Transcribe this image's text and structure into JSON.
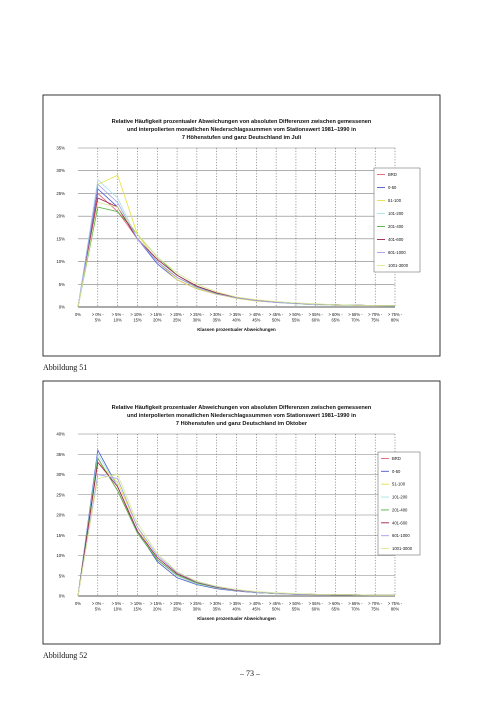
{
  "chart_data": [
    {
      "type": "line",
      "title": [
        "Relative Häufigkeit prozentualer Abweichungen von absoluten Differenzen zwischen gemessenen",
        "und interpolierten monatlichen Niederschlagssummen vom Stationswert 1981–1990 in",
        "7 Höhenstufen und ganz Deutschland im Juli"
      ],
      "x_label": "Klassen prozentualer Abweichungen",
      "categories": [
        "0%",
        "> 0% - 5%",
        "> 5% - 10%",
        "> 10% - 15%",
        "> 15% - 20%",
        "> 20% - 25%",
        "> 25% - 30%",
        "> 30% - 35%",
        "> 35% - 40%",
        "> 40% - 45%",
        "> 45% - 50%",
        "> 50% - 55%",
        "> 55% - 60%",
        "> 60% - 65%",
        "> 65% - 70%",
        "> 70% - 75%",
        "> 75% - 80%"
      ],
      "series": [
        {
          "name": "BRD",
          "color": "#e06070",
          "values": [
            0,
            25,
            21,
            15,
            10,
            6.5,
            4.5,
            3,
            2,
            1.5,
            1.1,
            0.8,
            0.6,
            0.5,
            0.4,
            0.3,
            0.3
          ]
        },
        {
          "name": "0-50",
          "color": "#4a5ad0",
          "values": [
            0,
            26,
            22,
            15,
            9.5,
            6,
            4,
            2.8,
            2,
            1.4,
            1,
            0.8,
            0.6,
            0.5,
            0.4,
            0.3,
            0.3
          ]
        },
        {
          "name": "51-100",
          "color": "#e8e040",
          "values": [
            0,
            27,
            29,
            16,
            10,
            6,
            4,
            2.8,
            1.9,
            1.3,
            1,
            0.7,
            0.5,
            0.4,
            0.3,
            0.3,
            0.2
          ]
        },
        {
          "name": "101-200",
          "color": "#a8e0e8",
          "values": [
            0,
            28,
            24,
            15,
            10,
            6.5,
            4.3,
            3,
            2,
            1.4,
            1,
            0.7,
            0.5,
            0.4,
            0.3,
            0.3,
            0.2
          ]
        },
        {
          "name": "201-400",
          "color": "#50b040",
          "values": [
            0,
            22,
            21,
            16,
            11,
            7,
            4.5,
            3,
            2,
            1.5,
            1.1,
            0.8,
            0.6,
            0.5,
            0.4,
            0.3,
            0.3
          ]
        },
        {
          "name": "401-600",
          "color": "#a02050",
          "values": [
            0,
            24,
            22,
            15,
            10.5,
            7,
            4.6,
            3.1,
            2.1,
            1.5,
            1.1,
            0.8,
            0.6,
            0.5,
            0.4,
            0.3,
            0.3
          ]
        },
        {
          "name": "601-1000",
          "color": "#a0a0f0",
          "values": [
            0,
            27,
            23,
            15,
            10,
            6.5,
            4.3,
            2.9,
            2,
            1.4,
            1,
            0.8,
            0.6,
            0.5,
            0.4,
            0.3,
            0.3
          ]
        },
        {
          "name": "1001-3000",
          "color": "#d8e890",
          "values": [
            0,
            23,
            22,
            16,
            11,
            7.5,
            5,
            3.3,
            2.2,
            1.6,
            1.2,
            0.9,
            0.7,
            0.5,
            0.4,
            0.3,
            0.3
          ]
        }
      ],
      "ylim": [
        0,
        35
      ],
      "yticks": [
        {
          "value": 0,
          "label": "0%"
        },
        {
          "value": 5,
          "label": "5%"
        },
        {
          "value": 10,
          "label": "10%"
        },
        {
          "value": 15,
          "label": "15%"
        },
        {
          "value": 20,
          "label": "20%"
        },
        {
          "value": 25,
          "label": "25%"
        },
        {
          "value": 30,
          "label": "30%"
        },
        {
          "value": 35,
          "label": "35%"
        }
      ],
      "grid": true,
      "legend": "right"
    },
    {
      "type": "line",
      "title": [
        "Relative Häufigkeit prozentualer Abweichungen von absoluten Differenzen zwischen gemessenen",
        "und interpolierten monatlichen Niederschlagssummen vom Stationswert 1981–1990 in",
        "7 Höhenstufen und ganz Deutschland im Oktober"
      ],
      "x_label": "Klassen prozentualer Abweichungen",
      "categories": [
        "0%",
        "> 0% - 5%",
        "> 5% - 10%",
        "> 10% - 15%",
        "> 15% - 20%",
        "> 20% - 25%",
        "> 25% - 30%",
        "> 30% - 35%",
        "> 35% - 40%",
        "> 40% - 45%",
        "> 45% - 50%",
        "> 50% - 55%",
        "> 55% - 60%",
        "> 60% - 65%",
        "> 65% - 70%",
        "> 70% - 75%",
        "> 75% - 80%"
      ],
      "series": [
        {
          "name": "BRD",
          "color": "#e06070",
          "values": [
            0,
            34,
            26,
            16,
            9,
            5,
            3,
            2,
            1.3,
            0.9,
            0.6,
            0.5,
            0.4,
            0.3,
            0.3,
            0.2,
            0.2
          ]
        },
        {
          "name": "0-50",
          "color": "#4a5ad0",
          "values": [
            0,
            36,
            27,
            16,
            8.5,
            4.5,
            2.8,
            1.8,
            1.2,
            0.8,
            0.6,
            0.4,
            0.3,
            0.3,
            0.2,
            0.2,
            0.2
          ]
        },
        {
          "name": "51-100",
          "color": "#e8e040",
          "values": [
            0,
            33,
            28,
            17,
            9,
            5,
            3,
            2,
            1.3,
            0.9,
            0.6,
            0.5,
            0.4,
            0.3,
            0.2,
            0.2,
            0.2
          ]
        },
        {
          "name": "101-200",
          "color": "#a8e0e8",
          "values": [
            0,
            35,
            27,
            16,
            9,
            5,
            3,
            2,
            1.3,
            0.9,
            0.6,
            0.5,
            0.4,
            0.3,
            0.2,
            0.2,
            0.2
          ]
        },
        {
          "name": "201-400",
          "color": "#50b040",
          "values": [
            0,
            34,
            26,
            15.5,
            9,
            5.2,
            3.2,
            2.1,
            1.4,
            1,
            0.7,
            0.5,
            0.4,
            0.3,
            0.3,
            0.2,
            0.2
          ]
        },
        {
          "name": "401-600",
          "color": "#a02050",
          "values": [
            0,
            33,
            27,
            16,
            9.5,
            5.5,
            3.4,
            2.2,
            1.4,
            1,
            0.7,
            0.5,
            0.4,
            0.3,
            0.3,
            0.2,
            0.2
          ]
        },
        {
          "name": "601-1000",
          "color": "#a0a0f0",
          "values": [
            0,
            30,
            29,
            17,
            10,
            5.8,
            3.5,
            2.3,
            1.5,
            1,
            0.7,
            0.5,
            0.4,
            0.3,
            0.3,
            0.2,
            0.2
          ]
        },
        {
          "name": "1001-3000",
          "color": "#d8e890",
          "values": [
            0,
            29,
            30,
            18,
            10.5,
            6,
            3.6,
            2.4,
            1.6,
            1.1,
            0.8,
            0.6,
            0.4,
            0.3,
            0.3,
            0.2,
            0.2
          ]
        }
      ],
      "ylim": [
        0,
        40
      ],
      "yticks": [
        {
          "value": 0,
          "label": "0%"
        },
        {
          "value": 5,
          "label": "5%"
        },
        {
          "value": 10,
          "label": "10%"
        },
        {
          "value": 15,
          "label": "15%"
        },
        {
          "value": 20,
          "label": "20%"
        },
        {
          "value": 25,
          "label": "25%"
        },
        {
          "value": 30,
          "label": "30%"
        },
        {
          "value": 35,
          "label": "35%"
        },
        {
          "value": 40,
          "label": "40%"
        }
      ],
      "grid": true,
      "legend": "right"
    }
  ],
  "captions": [
    "Abbildung 51",
    "Abbildung 52"
  ],
  "page_number": "– 73 –"
}
